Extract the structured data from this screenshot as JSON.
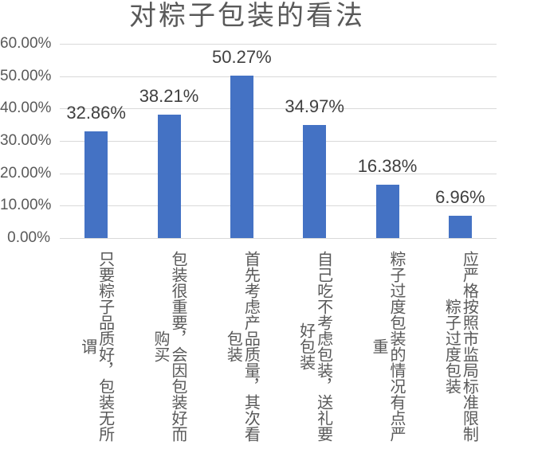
{
  "chart_data": {
    "type": "bar",
    "title": "对粽子包装的看法",
    "categories": [
      "只要粽子品质好，包装无所谓",
      "包装很重要，会因包装好而购买",
      "首先考虑产品质量，其次看包装",
      "自己吃不考虑包装，送礼要好包装",
      "粽子过度包装的情况有点严重",
      "应严格按照市监局标准限制粽子过度包装"
    ],
    "values": [
      32.86,
      38.21,
      50.27,
      34.97,
      16.38,
      6.96
    ],
    "value_labels": [
      "32.86%",
      "38.21%",
      "50.27%",
      "34.97%",
      "16.38%",
      "6.96%"
    ],
    "y_ticks": [
      "60.00%",
      "50.00%",
      "40.00%",
      "30.00%",
      "20.00%",
      "10.00%",
      "0.00%"
    ],
    "ylim": [
      0,
      60
    ],
    "xlabel": "",
    "ylabel": "",
    "grid": true,
    "legend": false,
    "colors": {
      "bar": "#4472C4",
      "gridline": "#D9D9D9",
      "title_text": "#595959",
      "axis_text": "#595959",
      "category_text": "#595959",
      "data_label_text": "#404040",
      "background": "#FFFFFF"
    }
  }
}
